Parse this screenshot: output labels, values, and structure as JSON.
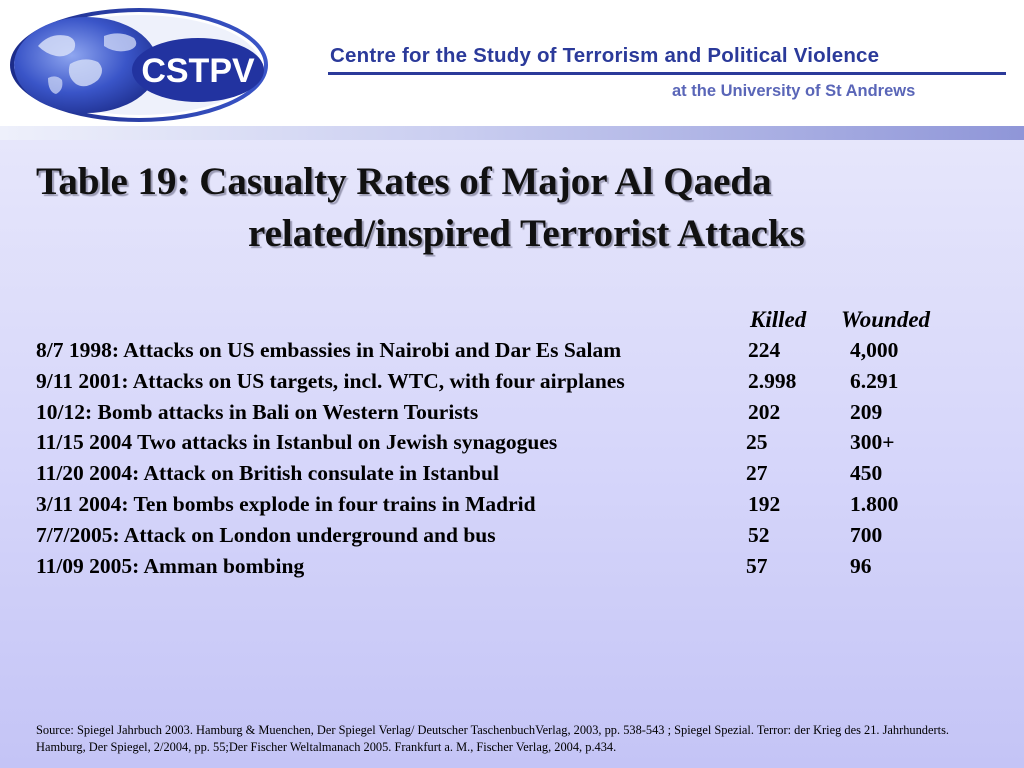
{
  "header": {
    "logo_text": "CSTPV",
    "org_name": "Centre for the Study of Terrorism and Political Violence",
    "org_subtitle": "at the University of St Andrews"
  },
  "title": {
    "line1": "Table 19: Casualty Rates of Major Al Qaeda",
    "line2": "related/inspired  Terrorist Attacks"
  },
  "table": {
    "columns": [
      "Killed",
      "Wounded"
    ],
    "rows": [
      {
        "desc": "8/7 1998: Attacks on US embassies in Nairobi and Dar Es Salam",
        "killed": "224",
        "wounded": "4,000"
      },
      {
        "desc": "9/11 2001: Attacks on US targets, incl. WTC, with four airplanes",
        "killed": "2.998",
        "wounded": "6.291"
      },
      {
        "desc": "10/12: Bomb attacks in Bali on Western Tourists",
        "killed": "202",
        "wounded": "209"
      },
      {
        "desc": "11/15 2004 Two attacks in Istanbul on Jewish synagogues",
        "killed": "25",
        "wounded": "300+"
      },
      {
        "desc": "11/20 2004: Attack on British consulate in Istanbul",
        "killed": "27",
        "wounded": "450"
      },
      {
        "desc": "3/11 2004: Ten bombs explode in four trains in Madrid",
        "killed": "192",
        "wounded": "1.800"
      },
      {
        "desc": "7/7/2005: Attack on London underground and bus",
        "killed": "52",
        "wounded": "700"
      },
      {
        "desc": "11/09 2005: Amman bombing",
        "killed": "57",
        "wounded": "96"
      }
    ]
  },
  "source": "Source: Spiegel Jahrbuch 2003. Hamburg & Muenchen, Der Spiegel Verlag/ Deutscher TaschenbuchVerlag, 2003, pp. 538-543 ; Spiegel Spezial. Terror: der Krieg des 21. Jahrhunderts. Hamburg, Der Spiegel, 2/2004, pp. 55;Der Fischer Weltalmanach 2005. Frankfurt a. M., Fischer Verlag, 2004, p.434.",
  "colors": {
    "brand_blue": "#2b3a9a",
    "globe_blue": "#3a4fb8",
    "background": "#d6d6fa"
  }
}
